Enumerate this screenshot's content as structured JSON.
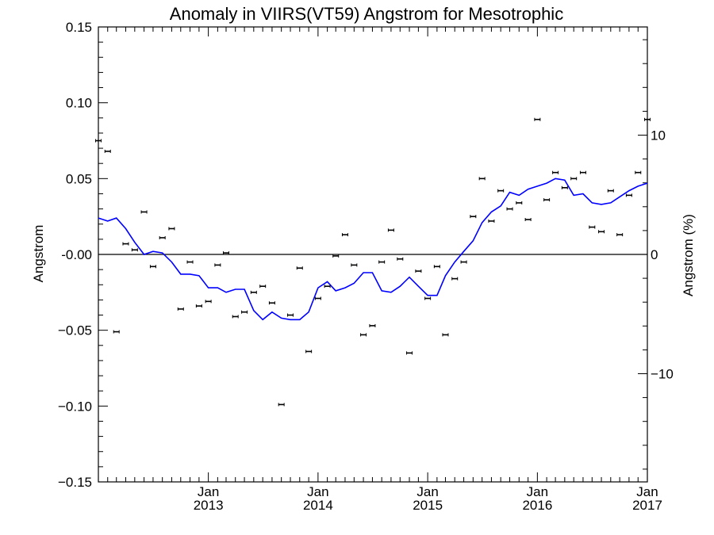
{
  "chart_data": {
    "type": "scatter",
    "title": "Anomaly in VIIRS(VT59) Angstrom for Mesotrophic",
    "xlabel": "",
    "ylabel": "Angstrom",
    "y2label": "Angstrom (%)",
    "xlim": [
      "2012-01-01",
      "2017-01-01"
    ],
    "ylim": [
      -0.15,
      0.15
    ],
    "y2lim": [
      -19.07,
      19.07
    ],
    "grid": false,
    "legend": "none",
    "x_ticks": [
      {
        "date": "2013-01-01",
        "month": "Jan",
        "year": "2013"
      },
      {
        "date": "2014-01-01",
        "month": "Jan",
        "year": "2014"
      },
      {
        "date": "2015-01-01",
        "month": "Jan",
        "year": "2015"
      },
      {
        "date": "2016-01-01",
        "month": "Jan",
        "year": "2016"
      },
      {
        "date": "2017-01-01",
        "month": "Jan",
        "year": "2017"
      }
    ],
    "y_ticks": [
      {
        "value": 0.15,
        "label": "0.15"
      },
      {
        "value": 0.1,
        "label": "0.10"
      },
      {
        "value": 0.05,
        "label": "0.05"
      },
      {
        "value": 0.0,
        "label": "-0.00"
      },
      {
        "value": -0.05,
        "label": "−0.05"
      },
      {
        "value": -0.1,
        "label": "−0.10"
      },
      {
        "value": -0.15,
        "label": "−0.15"
      }
    ],
    "y2_ticks": [
      {
        "value": 10,
        "label": "10"
      },
      {
        "value": 0,
        "label": "0"
      },
      {
        "value": -10,
        "label": "−10"
      }
    ],
    "zero_line": 0,
    "colors": {
      "points": "#000000",
      "smoothed": "#0000ff",
      "zero_line": "#000000"
    },
    "series": [
      {
        "kind": "points",
        "x": [
          "2012-01-01",
          "2012-02-01",
          "2012-03-01",
          "2012-04-01",
          "2012-05-01",
          "2012-06-01",
          "2012-07-01",
          "2012-08-01",
          "2012-09-01",
          "2012-10-01",
          "2012-11-01",
          "2012-12-01",
          "2013-01-01",
          "2013-02-01",
          "2013-03-01",
          "2013-04-01",
          "2013-05-01",
          "2013-06-01",
          "2013-07-01",
          "2013-08-01",
          "2013-09-01",
          "2013-10-01",
          "2013-11-01",
          "2013-12-01",
          "2014-01-01",
          "2014-02-01",
          "2014-03-01",
          "2014-04-01",
          "2014-05-01",
          "2014-06-01",
          "2014-07-01",
          "2014-08-01",
          "2014-09-01",
          "2014-10-01",
          "2014-11-01",
          "2014-12-01",
          "2015-01-01",
          "2015-02-01",
          "2015-03-01",
          "2015-04-01",
          "2015-05-01",
          "2015-06-01",
          "2015-07-01",
          "2015-08-01",
          "2015-09-01",
          "2015-10-01",
          "2015-11-01",
          "2015-12-01",
          "2016-01-01",
          "2016-02-01",
          "2016-03-01",
          "2016-04-01",
          "2016-05-01",
          "2016-06-01",
          "2016-07-01",
          "2016-08-01",
          "2016-09-01",
          "2016-10-01",
          "2016-11-01",
          "2016-12-01",
          "2017-01-01"
        ],
        "y": [
          0.075,
          0.068,
          -0.051,
          0.007,
          0.003,
          0.028,
          -0.008,
          0.011,
          0.017,
          -0.036,
          -0.005,
          -0.034,
          -0.031,
          -0.007,
          0.001,
          -0.041,
          -0.038,
          -0.025,
          -0.021,
          -0.032,
          -0.099,
          -0.04,
          -0.009,
          -0.064,
          -0.029,
          -0.021,
          -0.001,
          0.013,
          -0.007,
          -0.053,
          -0.047,
          -0.005,
          0.016,
          -0.003,
          -0.065,
          -0.011,
          -0.029,
          -0.008,
          -0.053,
          -0.016,
          -0.005,
          0.025,
          0.05,
          0.022,
          0.042,
          0.03,
          0.034,
          0.023,
          0.089,
          0.036,
          0.054,
          0.044,
          0.05,
          0.054,
          0.018,
          0.015,
          0.042,
          0.013,
          0.039,
          0.054,
          0.089
        ]
      },
      {
        "kind": "line",
        "x": [
          "2012-01-01",
          "2012-02-01",
          "2012-03-01",
          "2012-04-01",
          "2012-05-01",
          "2012-06-01",
          "2012-07-01",
          "2012-08-01",
          "2012-09-01",
          "2012-10-01",
          "2012-11-01",
          "2012-12-01",
          "2013-01-01",
          "2013-02-01",
          "2013-03-01",
          "2013-04-01",
          "2013-05-01",
          "2013-06-01",
          "2013-07-01",
          "2013-08-01",
          "2013-09-01",
          "2013-10-01",
          "2013-11-01",
          "2013-12-01",
          "2014-01-01",
          "2014-02-01",
          "2014-03-01",
          "2014-04-01",
          "2014-05-01",
          "2014-06-01",
          "2014-07-01",
          "2014-08-01",
          "2014-09-01",
          "2014-10-01",
          "2014-11-01",
          "2014-12-01",
          "2015-01-01",
          "2015-02-01",
          "2015-03-01",
          "2015-04-01",
          "2015-05-01",
          "2015-06-01",
          "2015-07-01",
          "2015-08-01",
          "2015-09-01",
          "2015-10-01",
          "2015-11-01",
          "2015-12-01",
          "2016-01-01",
          "2016-02-01",
          "2016-03-01",
          "2016-04-01",
          "2016-05-01",
          "2016-06-01",
          "2016-07-01",
          "2016-08-01",
          "2016-09-01",
          "2016-10-01",
          "2016-11-01",
          "2016-12-01",
          "2017-01-01"
        ],
        "y": [
          0.024,
          0.022,
          0.024,
          0.017,
          0.008,
          0.0,
          0.002,
          0.001,
          -0.005,
          -0.013,
          -0.013,
          -0.014,
          -0.022,
          -0.022,
          -0.025,
          -0.023,
          -0.023,
          -0.037,
          -0.043,
          -0.038,
          -0.042,
          -0.043,
          -0.043,
          -0.038,
          -0.022,
          -0.018,
          -0.024,
          -0.022,
          -0.019,
          -0.012,
          -0.012,
          -0.024,
          -0.025,
          -0.021,
          -0.015,
          -0.021,
          -0.027,
          -0.027,
          -0.014,
          -0.005,
          0.002,
          0.009,
          0.021,
          0.028,
          0.032,
          0.041,
          0.039,
          0.043,
          0.045,
          0.047,
          0.05,
          0.049,
          0.039,
          0.04,
          0.034,
          0.033,
          0.034,
          0.038,
          0.042,
          0.045,
          0.047
        ]
      }
    ]
  }
}
